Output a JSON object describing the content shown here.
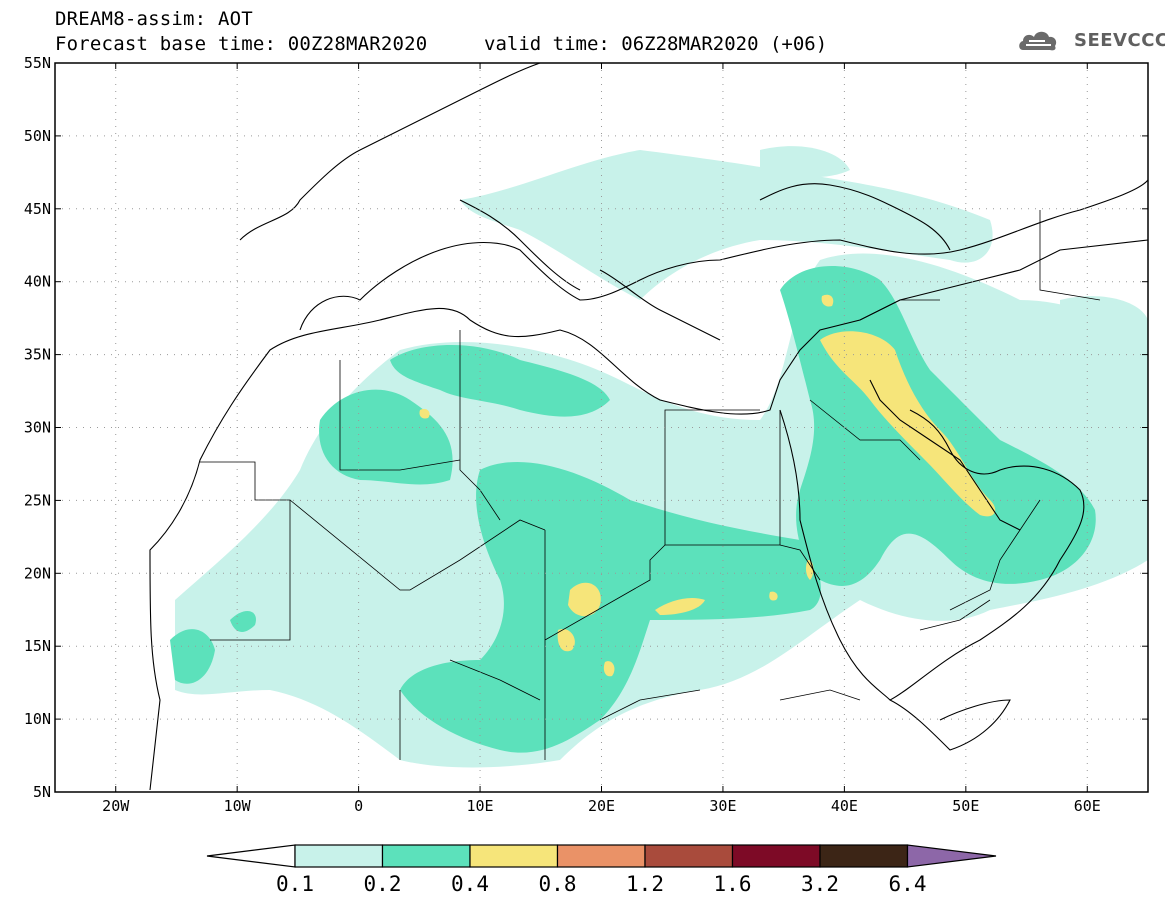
{
  "header": {
    "model_title": "DREAM8-assim: AOT",
    "base_time": "Forecast base time: 00Z28MAR2020",
    "valid_time": "valid time: 06Z28MAR2020 (+06)",
    "logo_text": "SEEVCCC"
  },
  "map": {
    "lon_range": [
      -25,
      65
    ],
    "lat_range": [
      5,
      55
    ],
    "x_ticks": [
      {
        "lon": -20,
        "label": "20W"
      },
      {
        "lon": -10,
        "label": "10W"
      },
      {
        "lon": 0,
        "label": "0"
      },
      {
        "lon": 10,
        "label": "10E"
      },
      {
        "lon": 20,
        "label": "20E"
      },
      {
        "lon": 30,
        "label": "30E"
      },
      {
        "lon": 40,
        "label": "40E"
      },
      {
        "lon": 50,
        "label": "50E"
      },
      {
        "lon": 60,
        "label": "60E"
      }
    ],
    "y_ticks": [
      {
        "lat": 55,
        "label": "55N"
      },
      {
        "lat": 50,
        "label": "50N"
      },
      {
        "lat": 45,
        "label": "45N"
      },
      {
        "lat": 40,
        "label": "40N"
      },
      {
        "lat": 35,
        "label": "35N"
      },
      {
        "lat": 30,
        "label": "30N"
      },
      {
        "lat": 25,
        "label": "25N"
      },
      {
        "lat": 20,
        "label": "20N"
      },
      {
        "lat": 15,
        "label": "15N"
      },
      {
        "lat": 10,
        "label": "10N"
      },
      {
        "lat": 5,
        "label": "5N"
      }
    ],
    "grid": "dotted",
    "legend_placement": "bottom"
  },
  "colorbar": {
    "levels": [
      "0.1",
      "0.2",
      "0.4",
      "0.8",
      "1.2",
      "1.6",
      "3.2",
      "6.4"
    ],
    "colors": [
      "#ffffff",
      "#c8f2ea",
      "#5ce1bb",
      "#f6e57a",
      "#ea9267",
      "#a94b3c",
      "#7d0a26",
      "#3c2516",
      "#8d67a8"
    ]
  }
}
